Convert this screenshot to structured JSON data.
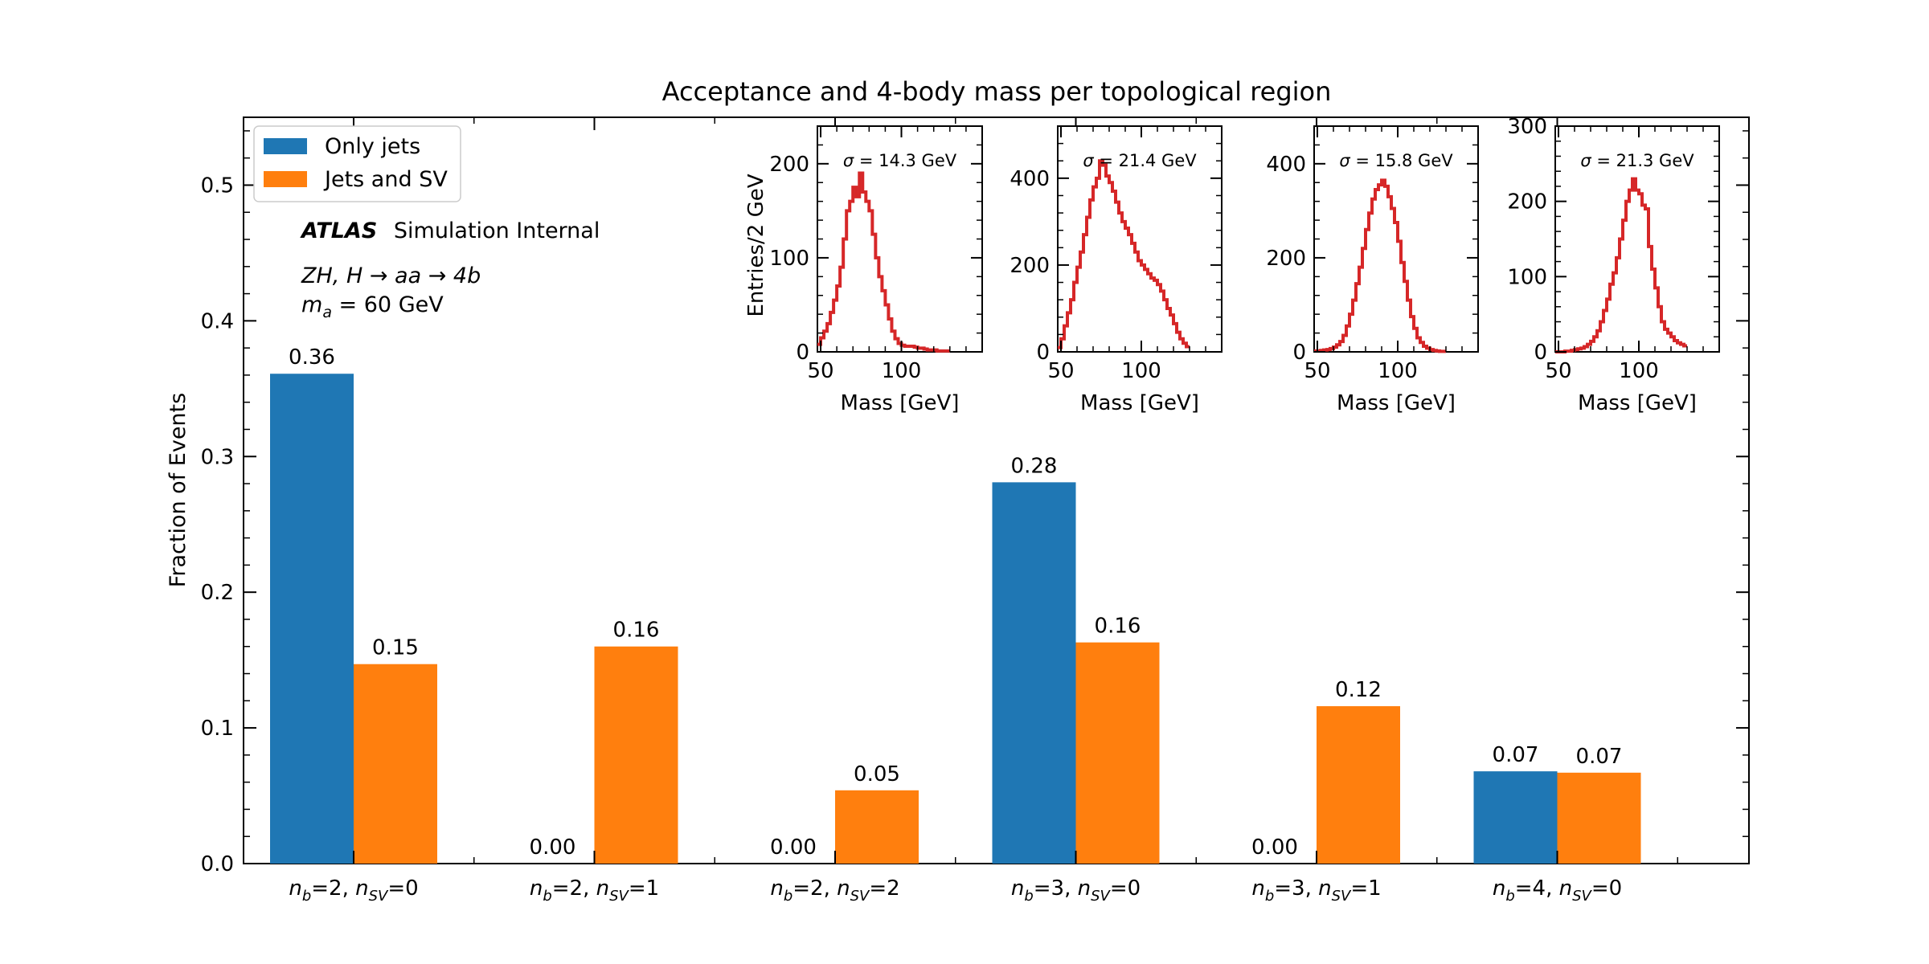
{
  "chart_data": {
    "type": "bar",
    "title": "Acceptance and 4-body mass per topological region",
    "ylabel": "Fraction of Events",
    "xlabel": "",
    "ylim": [
      0,
      0.55
    ],
    "yticks": [
      "0.0",
      "0.1",
      "0.2",
      "0.3",
      "0.4",
      "0.5"
    ],
    "grid": false,
    "legend_position": "top-left",
    "categories_tex": [
      [
        "n",
        "b",
        "=2, ",
        "n",
        "SV",
        "=0"
      ],
      [
        "n",
        "b",
        "=2, ",
        "n",
        "SV",
        "=1"
      ],
      [
        "n",
        "b",
        "=2, ",
        "n",
        "SV",
        "=2"
      ],
      [
        "n",
        "b",
        "=3, ",
        "n",
        "SV",
        "=0"
      ],
      [
        "n",
        "b",
        "=3, ",
        "n",
        "SV",
        "=1"
      ],
      [
        "n",
        "b",
        "=4, ",
        "n",
        "SV",
        "=0"
      ]
    ],
    "series": [
      {
        "name": "Only jets",
        "color": "#1f77b4",
        "values": [
          0.361,
          0.0,
          0.0,
          0.281,
          0.0,
          0.068
        ],
        "labels": [
          "0.36",
          "0.00",
          "0.00",
          "0.28",
          "0.00",
          "0.07"
        ]
      },
      {
        "name": "Jets and SV",
        "color": "#ff7f0e",
        "values": [
          0.147,
          0.16,
          0.054,
          0.163,
          0.116,
          0.067
        ],
        "labels": [
          "0.15",
          "0.16",
          "0.05",
          "0.16",
          "0.12",
          "0.07"
        ]
      }
    ],
    "annotations": {
      "atlas": "ATLAS",
      "atlas_suffix": "Simulation Internal",
      "process": "ZH, H → aa → 4b",
      "mass": "m_a = 60 GeV"
    },
    "insets": [
      {
        "type": "step",
        "color": "#d62728",
        "xlabel": "Mass [GeV]",
        "ylabel": "Entries/2 GeV",
        "xlim": [
          48,
          150
        ],
        "ylim": [
          0,
          240
        ],
        "xticks": [
          50,
          100
        ],
        "yticks": [
          0,
          100,
          200
        ],
        "sigma": "σ = 14.3  GeV",
        "bin_start": 48,
        "bin_width": 2,
        "counts": [
          8,
          15,
          22,
          30,
          42,
          55,
          70,
          90,
          120,
          150,
          160,
          175,
          165,
          190,
          170,
          160,
          150,
          125,
          100,
          80,
          65,
          50,
          35,
          22,
          14,
          9,
          7,
          6,
          6,
          6,
          5,
          4,
          4,
          3,
          2,
          2,
          2,
          1,
          1,
          1,
          1
        ]
      },
      {
        "type": "step",
        "color": "#d62728",
        "xlabel": "Mass [GeV]",
        "ylabel": "",
        "xlim": [
          48,
          150
        ],
        "ylim": [
          0,
          520
        ],
        "xticks": [
          50,
          100
        ],
        "yticks": [
          0,
          200,
          400
        ],
        "sigma": "σ = 21.4  GeV",
        "bin_start": 48,
        "bin_width": 2,
        "counts": [
          10,
          30,
          60,
          90,
          120,
          160,
          195,
          230,
          270,
          310,
          350,
          380,
          400,
          440,
          430,
          405,
          390,
          370,
          345,
          320,
          300,
          285,
          270,
          250,
          230,
          210,
          200,
          190,
          180,
          170,
          165,
          155,
          140,
          120,
          100,
          85,
          65,
          45,
          30,
          20,
          12
        ]
      },
      {
        "type": "step",
        "color": "#d62728",
        "xlabel": "Mass [GeV]",
        "ylabel": "",
        "xlim": [
          48,
          150
        ],
        "ylim": [
          0,
          480
        ],
        "xticks": [
          50,
          100
        ],
        "yticks": [
          0,
          200,
          400
        ],
        "sigma": "σ = 15.8  GeV",
        "bin_start": 48,
        "bin_width": 2,
        "counts": [
          2,
          2,
          3,
          4,
          5,
          7,
          10,
          15,
          22,
          35,
          55,
          80,
          110,
          145,
          180,
          220,
          260,
          295,
          325,
          345,
          355,
          365,
          352,
          330,
          305,
          275,
          235,
          190,
          150,
          110,
          75,
          50,
          30,
          20,
          12,
          8,
          5,
          3,
          2,
          1,
          1
        ]
      },
      {
        "type": "step",
        "color": "#d62728",
        "xlabel": "Mass [GeV]",
        "ylabel": "",
        "xlim": [
          48,
          150
        ],
        "ylim": [
          0,
          300
        ],
        "xticks": [
          50,
          100
        ],
        "yticks": [
          0,
          100,
          200,
          300
        ],
        "sigma": "σ = 21.3  GeV",
        "bin_start": 48,
        "bin_width": 2,
        "counts": [
          0,
          0,
          0,
          1,
          1,
          2,
          3,
          4,
          5,
          7,
          10,
          14,
          20,
          28,
          40,
          55,
          70,
          90,
          105,
          125,
          150,
          175,
          200,
          215,
          230,
          215,
          210,
          195,
          190,
          140,
          110,
          85,
          60,
          40,
          30,
          25,
          20,
          15,
          12,
          10,
          8
        ]
      }
    ]
  }
}
